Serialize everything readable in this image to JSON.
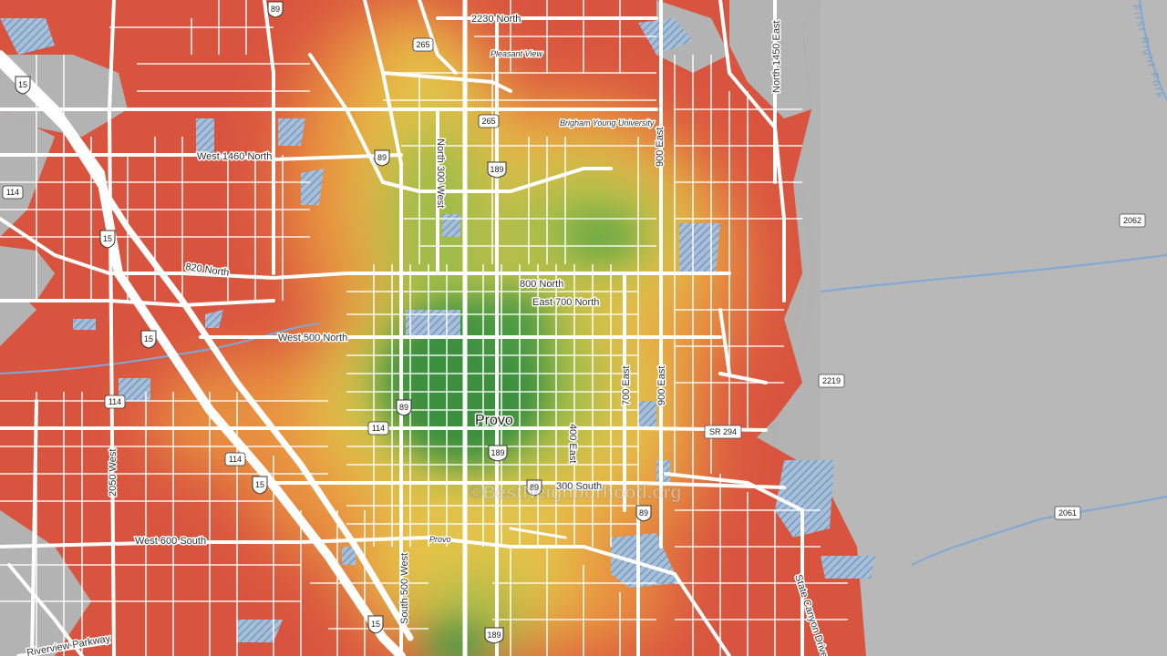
{
  "map": {
    "city_label": "Provo",
    "watermark": "©BestNeighborhood.org",
    "colors": {
      "background": "#b3b3b3",
      "high": "#d9543f",
      "mid_high": "#e8853f",
      "mid": "#e6c34a",
      "mid_low": "#9cbb4a",
      "low": "#3a8f3e",
      "water_hatch": "#7fa3c9",
      "roads": "#ffffff"
    },
    "street_labels": [
      "2230 North",
      "Pleasant View",
      "Brigham Young University",
      "North 1450 East",
      "First Right Fork",
      "West 1460 North",
      "North 300 West",
      "900 East",
      "820 North",
      "800 North",
      "East 700 North",
      "West 500 North",
      "700 East",
      "900 East",
      "SR 294",
      "400 East",
      "300 South",
      "2050 West",
      "West 600 South",
      "Provo",
      "South 500 West",
      "State Canyon Drive",
      "Riverview Parkway"
    ],
    "route_shields": [
      "89",
      "265",
      "265",
      "15",
      "89",
      "189",
      "114",
      "15",
      "15",
      "114",
      "89",
      "114",
      "114",
      "15",
      "189",
      "89",
      "89",
      "15",
      "189",
      "2062",
      "2219",
      "2061"
    ]
  }
}
